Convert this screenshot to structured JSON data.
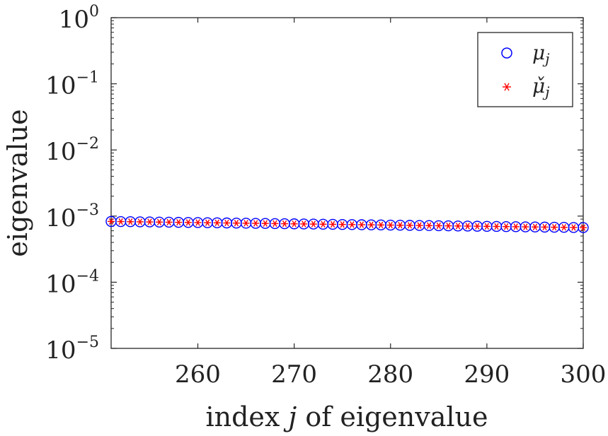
{
  "chart_data": {
    "type": "scatter",
    "title": "",
    "xlabel_parts": {
      "pre": "index ",
      "var": "j",
      "post": " of eigenvalue"
    },
    "ylabel": "eigenvalue",
    "x_scale": "linear",
    "y_scale": "log",
    "xlim": [
      251,
      300
    ],
    "ylim": [
      1e-05,
      1
    ],
    "x_ticks": [
      260,
      270,
      280,
      290,
      300
    ],
    "x_tick_labels": [
      "260",
      "270",
      "280",
      "290",
      "300"
    ],
    "y_ticks": [
      1e-05,
      0.0001,
      0.001,
      0.01,
      0.1,
      1
    ],
    "y_tick_labels": [
      {
        "base": "10",
        "exp": "−5"
      },
      {
        "base": "10",
        "exp": "−4"
      },
      {
        "base": "10",
        "exp": "−3"
      },
      {
        "base": "10",
        "exp": "−2"
      },
      {
        "base": "10",
        "exp": "−1"
      },
      {
        "base": "10",
        "exp": "0"
      }
    ],
    "legend_position": "top-right",
    "series": [
      {
        "name": "mu_j",
        "legend_symbol": "μ",
        "legend_subscript": "j",
        "marker": "circle",
        "color": "#0000ff",
        "x_range": [
          251,
          300
        ],
        "y_start": 0.00083,
        "y_end": 0.00067
      },
      {
        "name": "mu_check_j",
        "legend_symbol": "μ̌",
        "legend_subscript": "j",
        "marker": "asterisk",
        "color": "#ff0000",
        "x_range": [
          251,
          300
        ],
        "y_start": 0.00083,
        "y_end": 0.00067
      }
    ]
  }
}
